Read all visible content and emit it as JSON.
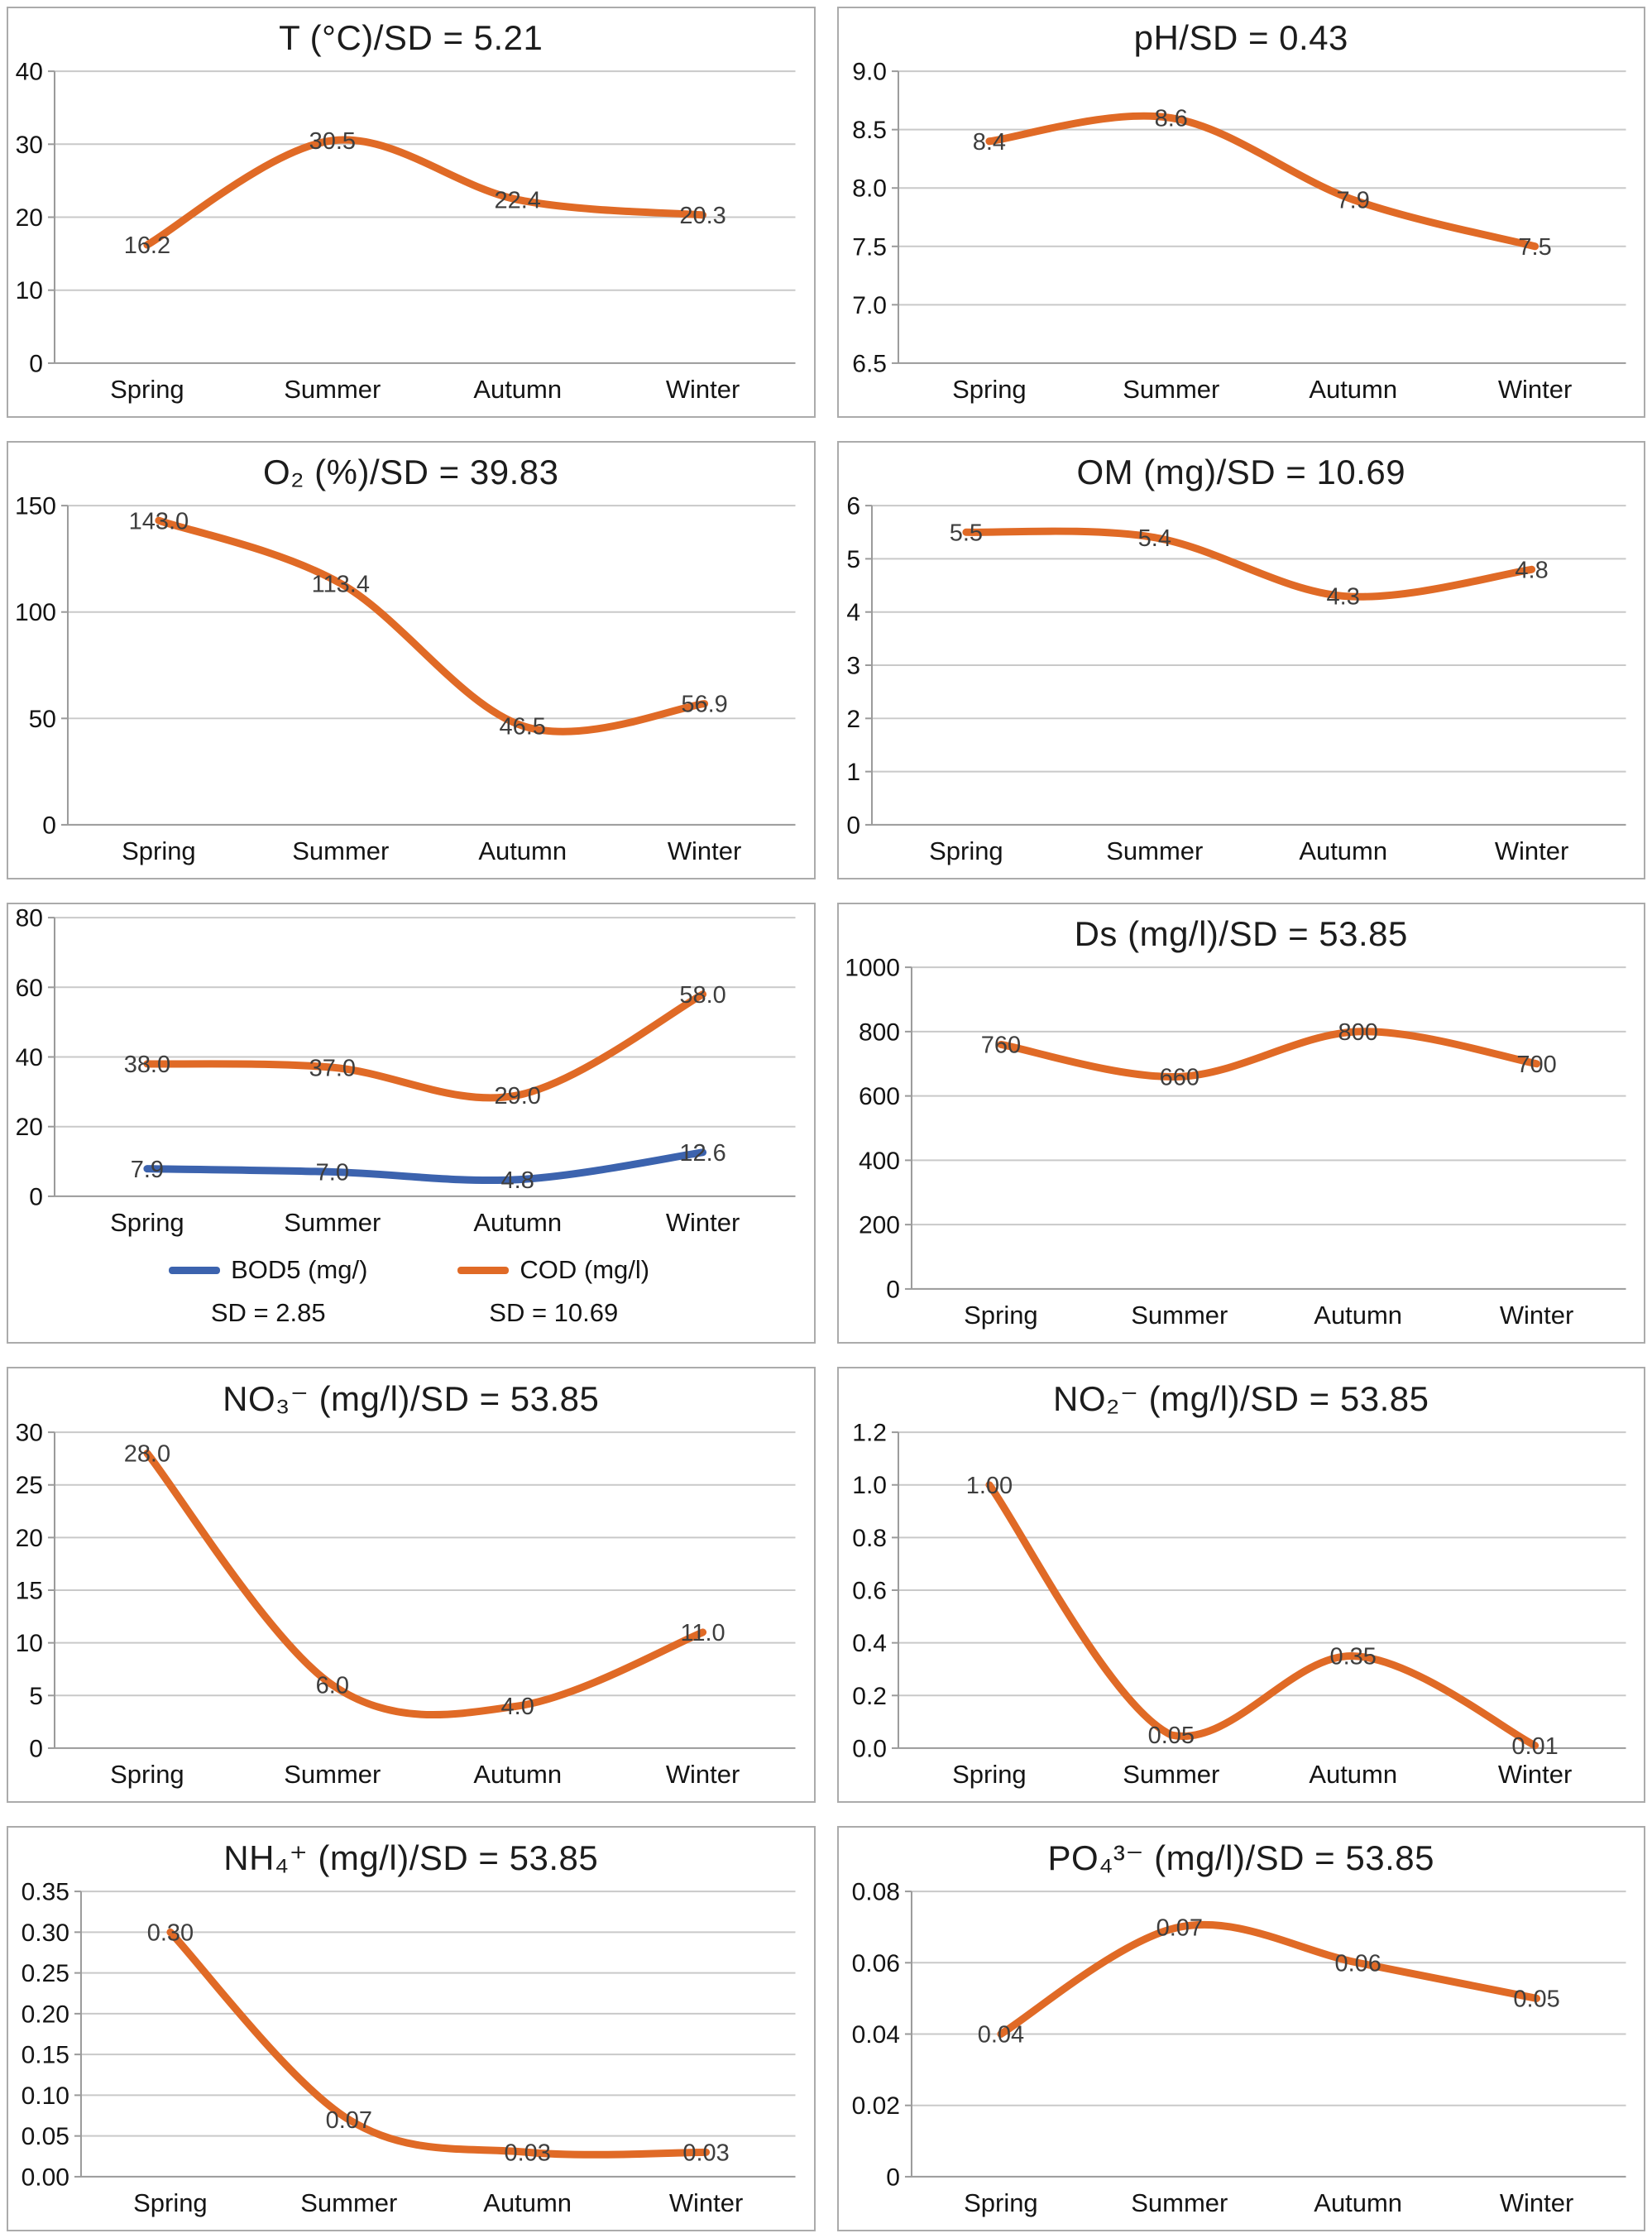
{
  "colors": {
    "orange": "#e06a26",
    "blue": "#3c63ae",
    "grid": "#c9c9c9",
    "axis": "#9a9a9a",
    "tick_text": "#141414",
    "data_label": "#3e3e3e",
    "title_text": "#1c1c1c",
    "panel_border": "#ababab",
    "background": "#ffffff"
  },
  "chart_data": [
    {
      "type": "line",
      "title": "T (°C)/SD = 5.21",
      "categories": [
        "Spring",
        "Summer",
        "Autumn",
        "Winter"
      ],
      "y_min": 0,
      "y_max": 40,
      "y_ticks": [
        "0",
        "10",
        "20",
        "30",
        "40"
      ],
      "grid": true,
      "series": [
        {
          "name": "T (°C)",
          "color_key": "orange",
          "values": [
            16.2,
            30.5,
            22.4,
            20.3
          ],
          "labels": [
            "16.2",
            "30.5",
            "22.4",
            "20.3"
          ]
        }
      ]
    },
    {
      "type": "line",
      "title": "pH/SD = 0.43",
      "categories": [
        "Spring",
        "Summer",
        "Autumn",
        "Winter"
      ],
      "y_min": 6.5,
      "y_max": 9.0,
      "y_ticks": [
        "6.5",
        "7.0",
        "7.5",
        "8.0",
        "8.5",
        "9.0"
      ],
      "grid": true,
      "series": [
        {
          "name": "pH",
          "color_key": "orange",
          "values": [
            8.4,
            8.6,
            7.9,
            7.5
          ],
          "labels": [
            "8.4",
            "8.6",
            "7.9",
            "7.5"
          ]
        }
      ]
    },
    {
      "type": "line",
      "title": "O₂ (%)/SD = 39.83",
      "categories": [
        "Spring",
        "Summer",
        "Autumn",
        "Winter"
      ],
      "y_min": 0,
      "y_max": 150,
      "y_ticks": [
        "0",
        "50",
        "100",
        "150"
      ],
      "grid": true,
      "series": [
        {
          "name": "O₂ (%)",
          "color_key": "orange",
          "values": [
            143.0,
            113.4,
            46.5,
            56.9
          ],
          "labels": [
            "143.0",
            "113.4",
            "46.5",
            "56.9"
          ]
        }
      ]
    },
    {
      "type": "line",
      "title": "OM (mg)/SD = 10.69",
      "categories": [
        "Spring",
        "Summer",
        "Autumn",
        "Winter"
      ],
      "y_min": 0,
      "y_max": 6,
      "y_ticks": [
        "0",
        "1",
        "2",
        "3",
        "4",
        "5",
        "6"
      ],
      "grid": true,
      "series": [
        {
          "name": "OM (mg)",
          "color_key": "orange",
          "values": [
            5.5,
            5.4,
            4.3,
            4.8
          ],
          "labels": [
            "5.5",
            "5.4",
            "4.3",
            "4.8"
          ]
        }
      ]
    },
    {
      "type": "line",
      "title": "",
      "categories": [
        "Spring",
        "Summer",
        "Autumn",
        "Winter"
      ],
      "y_min": 0,
      "y_max": 80,
      "y_ticks": [
        "0",
        "20",
        "40",
        "60",
        "80"
      ],
      "grid": true,
      "legend_position": "bottom",
      "series": [
        {
          "name": "BOD5 (mg/)",
          "color_key": "blue",
          "values": [
            7.9,
            7.0,
            4.8,
            12.6
          ],
          "labels": [
            "7.9",
            "7.0",
            "4.8",
            "12.6"
          ]
        },
        {
          "name": "COD (mg/l)",
          "color_key": "orange",
          "values": [
            38.0,
            37.0,
            29.0,
            58.0
          ],
          "labels": [
            "38.0",
            "37.0",
            "29.0",
            "58.0"
          ]
        }
      ],
      "legend": [
        {
          "label": "BOD5 (mg/)",
          "color_key": "blue"
        },
        {
          "label": "COD (mg/l)",
          "color_key": "orange"
        }
      ],
      "sd_notes": [
        "SD = 2.85",
        "SD = 10.69"
      ]
    },
    {
      "type": "line",
      "title": "Ds (mg/l)/SD = 53.85",
      "categories": [
        "Spring",
        "Summer",
        "Autumn",
        "Winter"
      ],
      "y_min": 0,
      "y_max": 1000,
      "y_ticks": [
        "0",
        "200",
        "400",
        "600",
        "800",
        "1000"
      ],
      "grid": true,
      "series": [
        {
          "name": "Ds (mg/l)",
          "color_key": "orange",
          "values": [
            760,
            660,
            800,
            700
          ],
          "labels": [
            "760",
            "660",
            "800",
            "700"
          ]
        }
      ]
    },
    {
      "type": "line",
      "title": "NO₃⁻ (mg/l)/SD = 53.85",
      "categories": [
        "Spring",
        "Summer",
        "Autumn",
        "Winter"
      ],
      "y_min": 0,
      "y_max": 30,
      "y_ticks": [
        "0",
        "5",
        "10",
        "15",
        "20",
        "25",
        "30"
      ],
      "grid": true,
      "series": [
        {
          "name": "NO₃⁻ (mg/l)",
          "color_key": "orange",
          "values": [
            28.0,
            6.0,
            4.0,
            11.0
          ],
          "labels": [
            "28.0",
            "6.0",
            "4.0",
            "11.0"
          ]
        }
      ]
    },
    {
      "type": "line",
      "title": "NO₂⁻ (mg/l)/SD = 53.85",
      "categories": [
        "Spring",
        "Summer",
        "Autumn",
        "Winter"
      ],
      "y_min": 0,
      "y_max": 1.2,
      "y_ticks": [
        "0.0",
        "0.2",
        "0.4",
        "0.6",
        "0.8",
        "1.0",
        "1.2"
      ],
      "grid": true,
      "series": [
        {
          "name": "NO₂⁻ (mg/l)",
          "color_key": "orange",
          "values": [
            1.0,
            0.05,
            0.35,
            0.01
          ],
          "labels": [
            "1.00",
            "0.05",
            "0.35",
            "0.01"
          ]
        }
      ]
    },
    {
      "type": "line",
      "title": "NH₄⁺ (mg/l)/SD = 53.85",
      "categories": [
        "Spring",
        "Summer",
        "Autumn",
        "Winter"
      ],
      "y_min": 0,
      "y_max": 0.35,
      "y_ticks": [
        "0.00",
        "0.05",
        "0.10",
        "0.15",
        "0.20",
        "0.25",
        "0.30",
        "0.35"
      ],
      "grid": true,
      "series": [
        {
          "name": "NH₄⁺ (mg/l)",
          "color_key": "orange",
          "values": [
            0.3,
            0.07,
            0.03,
            0.03
          ],
          "labels": [
            "0.30",
            "0.07",
            "0.03",
            "0.03"
          ]
        }
      ]
    },
    {
      "type": "line",
      "title": "PO₄³⁻ (mg/l)/SD = 53.85",
      "categories": [
        "Spring",
        "Summer",
        "Autumn",
        "Winter"
      ],
      "y_min": 0,
      "y_max": 0.08,
      "y_ticks": [
        "0",
        "0.02",
        "0.04",
        "0.06",
        "0.08"
      ],
      "grid": true,
      "series": [
        {
          "name": "PO₄³⁻ (mg/l)",
          "color_key": "orange",
          "values": [
            0.04,
            0.07,
            0.06,
            0.05
          ],
          "labels": [
            "0.04",
            "0.07",
            "0.06",
            "0.05"
          ]
        }
      ]
    }
  ]
}
